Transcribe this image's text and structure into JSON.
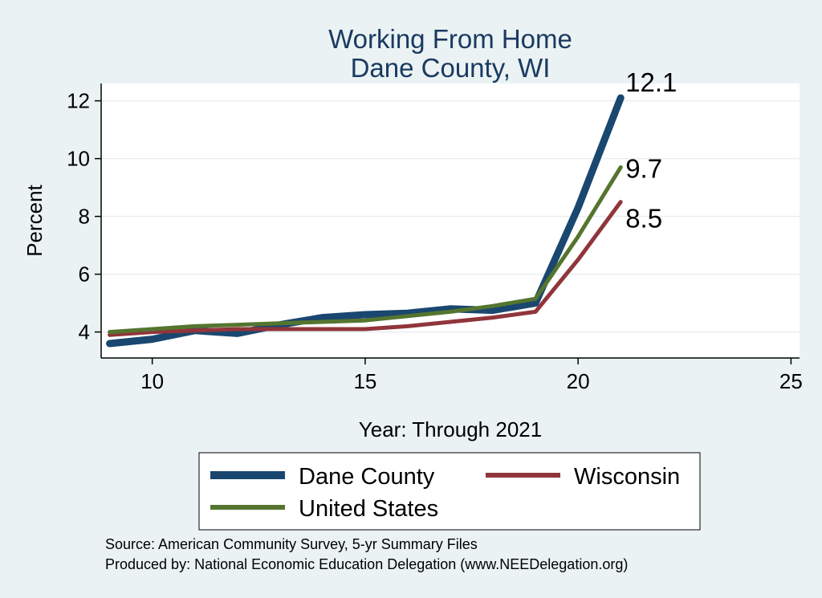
{
  "chart_data": {
    "type": "line",
    "title": "Working From Home",
    "subtitle": "Dane County, WI",
    "xlabel": "Year: Through 2021",
    "ylabel": "Percent",
    "xlim": [
      8.8,
      25.2
    ],
    "ylim": [
      3.1,
      12.6
    ],
    "x_ticks": [
      10,
      15,
      20,
      25
    ],
    "y_ticks": [
      4,
      6,
      8,
      10,
      12
    ],
    "grid": true,
    "legend_position": "bottom",
    "x": [
      9,
      10,
      11,
      12,
      13,
      14,
      15,
      16,
      17,
      18,
      19,
      20,
      21
    ],
    "series": [
      {
        "name": "Dane County",
        "color": "#1a476f",
        "values": [
          3.6,
          3.75,
          4.05,
          3.95,
          4.25,
          4.5,
          4.6,
          4.65,
          4.8,
          4.75,
          5.0,
          8.3,
          12.1
        ]
      },
      {
        "name": "Wisconsin",
        "color": "#90353b",
        "values": [
          3.9,
          4.0,
          4.05,
          4.1,
          4.1,
          4.1,
          4.1,
          4.2,
          4.35,
          4.5,
          4.7,
          6.5,
          8.5
        ]
      },
      {
        "name": "United States",
        "color": "#55752f",
        "values": [
          4.0,
          4.1,
          4.2,
          4.25,
          4.3,
          4.35,
          4.4,
          4.55,
          4.7,
          4.9,
          5.15,
          7.3,
          9.7
        ]
      }
    ],
    "end_labels": [
      "12.1",
      "9.7",
      "8.5"
    ],
    "source_lines": [
      "Source: American Community Survey, 5-yr Summary Files",
      "Produced by: National Economic Education Delegation (www.NEEDelegation.org)"
    ]
  }
}
